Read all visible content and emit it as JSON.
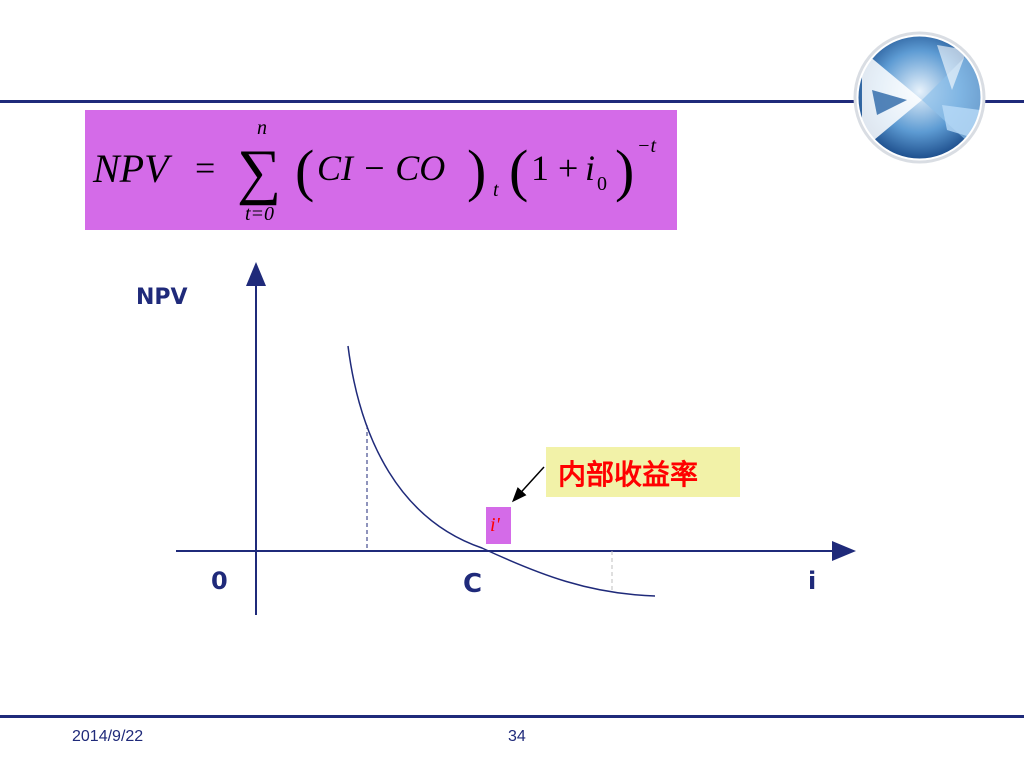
{
  "formula": {
    "lhs": "NPV",
    "equals": "=",
    "sigma": "∑",
    "upper_limit": "n",
    "lower_limit": "t=0",
    "ci_co": "CI − CO",
    "subscript_t": "t",
    "one_plus": "1 + ",
    "i_var": "i",
    "i_sub": "0",
    "exponent": "−t"
  },
  "chart": {
    "y_label": "NPV",
    "origin_label": "0",
    "c_label": "C",
    "x_label": "i",
    "i_prime_label": "i'",
    "callout_label": "内部收益率",
    "colors": {
      "axis": "#1f2a7a",
      "curve": "#1f2a7a",
      "callout_bg": "#f2f2a8",
      "callout_text": "#ff0000",
      "i_prime_bg": "#d46be8",
      "i_prime_text": "#ff0000"
    }
  },
  "footer": {
    "date": "2014/9/22",
    "page": "34"
  }
}
